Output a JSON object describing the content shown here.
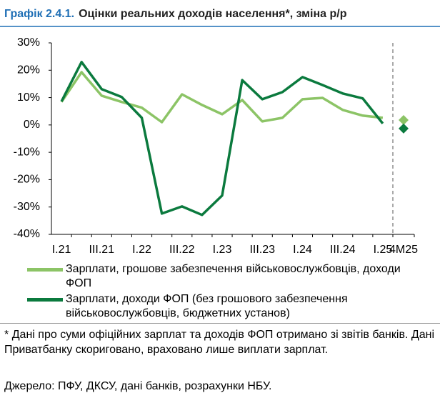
{
  "chart_data": {
    "type": "line",
    "title_label": "Графік 2.4.1.",
    "title": "Оцінки реальних доходів населення*, зміна р/р",
    "categories": [
      "I.21",
      null,
      "III.21",
      null,
      "I.22",
      null,
      "III.22",
      null,
      "I.23",
      null,
      "III.23",
      null,
      "I.24",
      null,
      "III.24",
      null,
      "I.25",
      "4M25"
    ],
    "series": [
      {
        "name": "Зарплати, грошове забезпечення військовослужбовців, доходи ФОП",
        "color": "#8cc466",
        "values": [
          8.4,
          19.3,
          10.7,
          8.4,
          6.3,
          1.0,
          11.2,
          7.3,
          3.9,
          9.1,
          1.3,
          2.6,
          9.4,
          9.9,
          5.5,
          3.4,
          2.6,
          1.8
        ]
      },
      {
        "name": "Зарплати, доходи ФОП (без грошового забезпечення військовослужбовців, бюджетних установ)",
        "color": "#0b7a3e",
        "values": [
          8.6,
          23.0,
          13.1,
          10.2,
          2.6,
          -32.4,
          -29.8,
          -32.9,
          -25.8,
          16.4,
          9.4,
          12.0,
          17.5,
          14.6,
          11.5,
          9.7,
          0.5,
          -1.3
        ]
      }
    ],
    "separate_last": true,
    "ylim": [
      -40,
      30
    ],
    "yticks": [
      {
        "value": -40,
        "label": "-40%"
      },
      {
        "value": -30,
        "label": "-30%"
      },
      {
        "value": -20,
        "label": "-20%"
      },
      {
        "value": -10,
        "label": "-10%"
      },
      {
        "value": 0,
        "label": "0%"
      },
      {
        "value": 10,
        "label": "10%"
      },
      {
        "value": 20,
        "label": "20%"
      },
      {
        "value": 30,
        "label": "30%"
      }
    ],
    "footnote": "* Дані про суми офіційних зарплат та доходів ФОП отримано зі звітів банків. Дані Приватбанку скориговано, враховано лише виплати зарплат.",
    "source": "Джерело: ПФУ, ДКСУ, дані банків, розрахунки НБУ."
  }
}
